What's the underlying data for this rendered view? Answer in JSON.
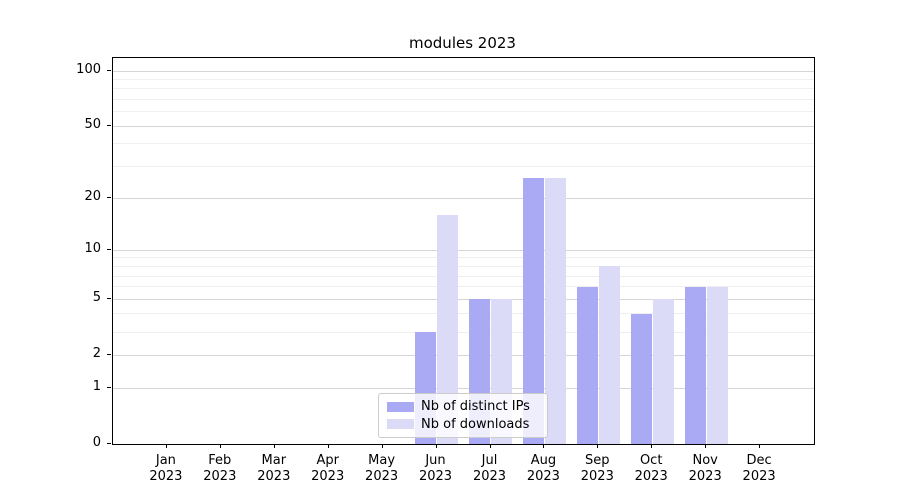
{
  "chart_data": {
    "type": "bar",
    "title": "modules 2023",
    "categories": [
      {
        "month": "Jan",
        "year": "2023"
      },
      {
        "month": "Feb",
        "year": "2023"
      },
      {
        "month": "Mar",
        "year": "2023"
      },
      {
        "month": "Apr",
        "year": "2023"
      },
      {
        "month": "May",
        "year": "2023"
      },
      {
        "month": "Jun",
        "year": "2023"
      },
      {
        "month": "Jul",
        "year": "2023"
      },
      {
        "month": "Aug",
        "year": "2023"
      },
      {
        "month": "Sep",
        "year": "2023"
      },
      {
        "month": "Oct",
        "year": "2023"
      },
      {
        "month": "Nov",
        "year": "2023"
      },
      {
        "month": "Dec",
        "year": "2023"
      }
    ],
    "series": [
      {
        "name": "Nb of distinct IPs",
        "color": "#a9a9f4",
        "values": [
          0,
          0,
          0,
          0,
          0,
          3,
          5,
          26,
          6,
          4,
          6,
          0
        ]
      },
      {
        "name": "Nb of downloads",
        "color": "#dbdbf8",
        "values": [
          0,
          0,
          0,
          0,
          0,
          16,
          5,
          26,
          8,
          5,
          6,
          0
        ]
      }
    ],
    "y_axis": {
      "scale": "log1p",
      "ticks": [
        100,
        50,
        20,
        10,
        5,
        2,
        1,
        0
      ],
      "minor_gridlines": [
        3,
        4,
        6,
        7,
        8,
        9,
        30,
        40,
        60,
        70,
        80,
        90
      ],
      "max": 117.7
    },
    "legend_position": "lower center",
    "grid": true,
    "colors": {
      "axis": "#000000",
      "major_grid": "#d6d6d6",
      "minor_grid": "#efefef",
      "legend_border": "#cccccc"
    }
  }
}
